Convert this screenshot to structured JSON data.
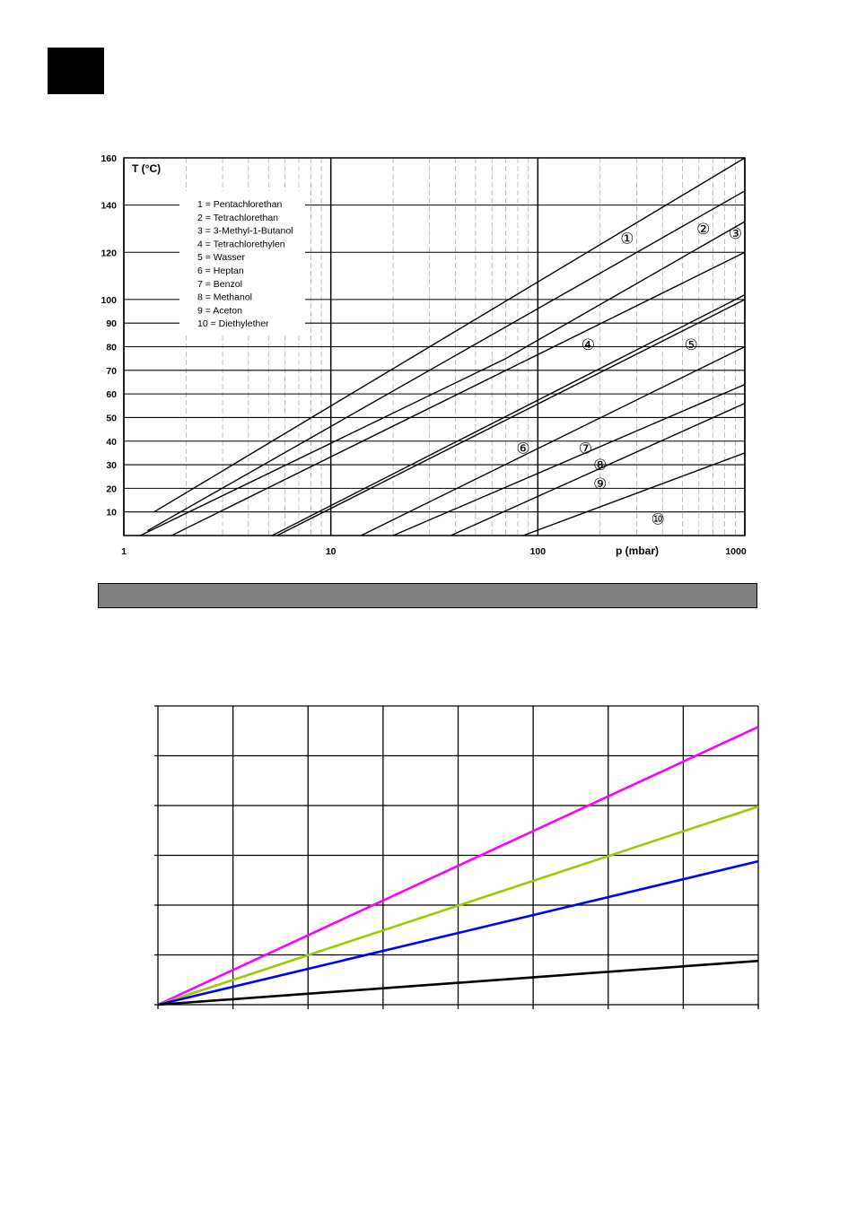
{
  "chart_data": [
    {
      "type": "line",
      "title": "",
      "ylabel": "T (°C)",
      "xlabel": "p (mbar)",
      "xscale": "log",
      "xlim": [
        1,
        1000
      ],
      "ylim": [
        0,
        160
      ],
      "x_ticks": [
        1,
        10,
        100,
        1000
      ],
      "x_tick_labels": [
        "1",
        "10",
        "100",
        "1000"
      ],
      "y_ticks": [
        10,
        20,
        30,
        40,
        50,
        60,
        70,
        80,
        90,
        100,
        120,
        140,
        160
      ],
      "y_tick_labels": [
        "10",
        "20",
        "30",
        "40",
        "50",
        "60",
        "70",
        "80",
        "90",
        "100",
        "120",
        "140",
        "160"
      ],
      "grid": true,
      "legend_position": "top-left",
      "legend": [
        "1 = Pentachlorethan",
        "2 = Tetrachlorethan",
        "3 = 3-Methyl-1-Butanol",
        "4 = Tetrachlorethylen",
        "5 = Wasser",
        "6 = Heptan",
        "7 = Benzol",
        "8 = Methanol",
        "9 = Aceton",
        "10 = Diethylether"
      ],
      "series": [
        {
          "marker": "①",
          "label_at": [
            270,
            126
          ],
          "x": [
            1.4,
            1000
          ],
          "y": [
            10,
            160
          ]
        },
        {
          "marker": "②",
          "label_at": [
            630,
            130
          ],
          "x": [
            1.3,
            1000
          ],
          "y": [
            2,
            146
          ]
        },
        {
          "marker": "③",
          "label_at": [
            900,
            128
          ],
          "x": [
            1.2,
            70,
            1000
          ],
          "y": [
            0,
            75,
            133
          ]
        },
        {
          "marker": "④",
          "label_at": [
            175,
            81
          ],
          "x": [
            1.7,
            1000
          ],
          "y": [
            0,
            120
          ]
        },
        {
          "marker": "⑤",
          "label_at": [
            550,
            81
          ],
          "x": [
            5.2,
            1000
          ],
          "y": [
            0,
            102
          ]
        },
        {
          "marker": "⑥",
          "label_at": [
            85,
            37
          ],
          "x": [
            5.5,
            1000
          ],
          "y": [
            0,
            100
          ]
        },
        {
          "marker": "⑦",
          "label_at": [
            170,
            37
          ],
          "x": [
            14,
            1000
          ],
          "y": [
            0,
            80
          ]
        },
        {
          "marker": "⑧",
          "label_at": [
            200,
            30
          ],
          "x": [
            20,
            1000
          ],
          "y": [
            0,
            64
          ]
        },
        {
          "marker": "⑨",
          "label_at": [
            200,
            22
          ],
          "x": [
            38,
            1000
          ],
          "y": [
            0,
            56
          ]
        },
        {
          "marker": "⑩",
          "label_at": [
            380,
            7
          ],
          "x": [
            85,
            1000
          ],
          "y": [
            0,
            35
          ]
        }
      ]
    },
    {
      "type": "line",
      "title": "",
      "xlabel": "",
      "ylabel": "",
      "xlim": [
        0,
        8
      ],
      "ylim": [
        0,
        6
      ],
      "grid": true,
      "series": [
        {
          "color": "#ff00ff",
          "x": [
            0,
            8
          ],
          "y": [
            0,
            5.58
          ]
        },
        {
          "color": "#99cc00",
          "x": [
            0,
            8
          ],
          "y": [
            0,
            3.98
          ]
        },
        {
          "color": "#0000ff",
          "x": [
            0,
            8
          ],
          "y": [
            0,
            2.88
          ]
        },
        {
          "color": "#000000",
          "x": [
            0,
            8
          ],
          "y": [
            0,
            0.88
          ]
        }
      ]
    }
  ]
}
